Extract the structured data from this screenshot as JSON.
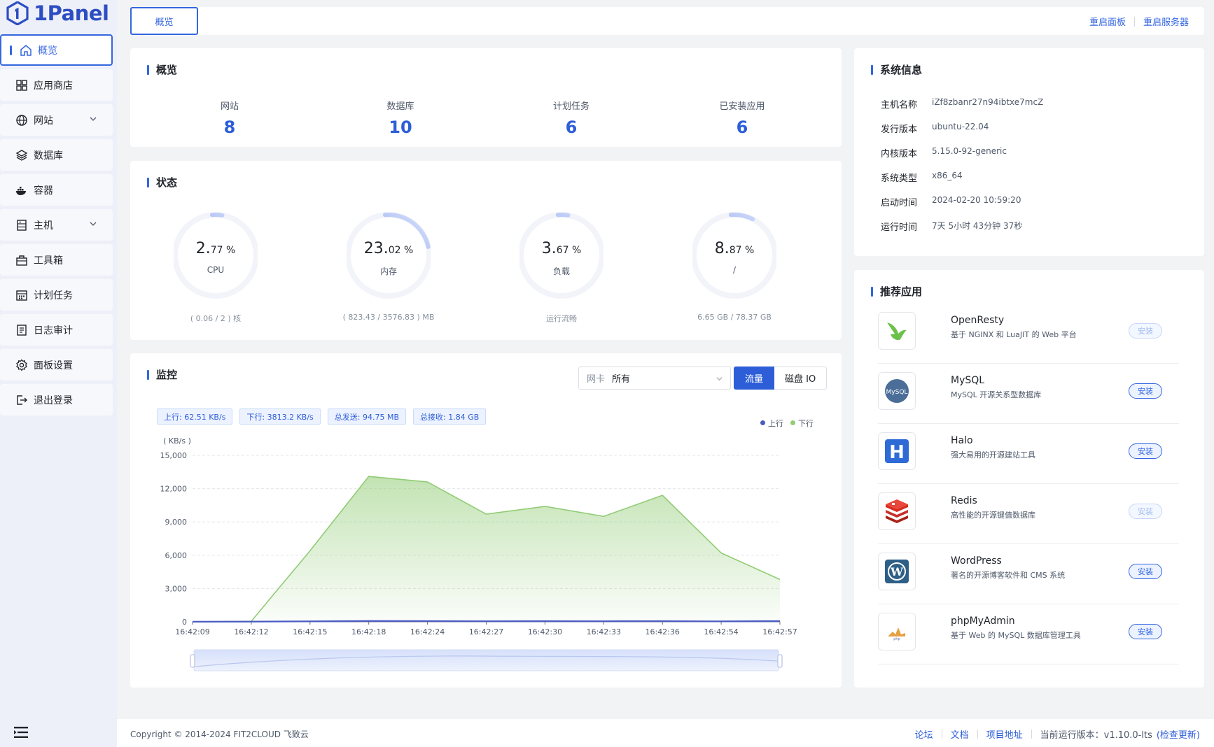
{
  "brand": {
    "name": "1Panel"
  },
  "sidebar": {
    "items": [
      {
        "label": "概览",
        "icon": "home-icon",
        "active": true
      },
      {
        "label": "应用商店",
        "icon": "grid-icon"
      },
      {
        "label": "网站",
        "icon": "globe-icon",
        "expandable": true
      },
      {
        "label": "数据库",
        "icon": "layers-icon"
      },
      {
        "label": "容器",
        "icon": "docker-icon"
      },
      {
        "label": "主机",
        "icon": "server-icon",
        "expandable": true
      },
      {
        "label": "工具箱",
        "icon": "toolbox-icon"
      },
      {
        "label": "计划任务",
        "icon": "calendar-icon"
      },
      {
        "label": "日志审计",
        "icon": "log-icon"
      },
      {
        "label": "面板设置",
        "icon": "gear-icon"
      },
      {
        "label": "退出登录",
        "icon": "logout-icon"
      }
    ]
  },
  "topbar": {
    "tab": "概览",
    "restart_panel": "重启面板",
    "restart_server": "重启服务器"
  },
  "overview": {
    "title": "概览",
    "stats": [
      {
        "label": "网站",
        "value": "8"
      },
      {
        "label": "数据库",
        "value": "10"
      },
      {
        "label": "计划任务",
        "value": "6"
      },
      {
        "label": "已安装应用",
        "value": "6"
      }
    ]
  },
  "status": {
    "title": "状态",
    "gauges": [
      {
        "int": "2.",
        "dec": "77 %",
        "percent": 2.77,
        "name": "CPU",
        "detail": "( 0.06 / 2 ) 核"
      },
      {
        "int": "23.",
        "dec": "02 %",
        "percent": 23.02,
        "name": "内存",
        "detail": "( 823.43 / 3576.83 ) MB"
      },
      {
        "int": "3.",
        "dec": "67 %",
        "percent": 3.67,
        "name": "负载",
        "detail": "运行流畅"
      },
      {
        "int": "8.",
        "dec": "87 %",
        "percent": 8.87,
        "name": "/",
        "detail": "6.65 GB / 78.37 GB"
      }
    ]
  },
  "monitor": {
    "title": "监控",
    "nic_prefix": "网卡",
    "nic_value": "所有",
    "tab_traffic": "流量",
    "tab_disk": "磁盘 IO",
    "tags": [
      "上行: 62.51 KB/s",
      "下行: 3813.2 KB/s",
      "总发送: 94.75 MB",
      "总接收: 1.84 GB"
    ]
  },
  "chart_data": {
    "type": "area",
    "ylabel": "( KB/s )",
    "ylim": [
      0,
      15000
    ],
    "yticks": [
      "0",
      "3,000",
      "6,000",
      "9,000",
      "12,000",
      "15,000"
    ],
    "x": [
      "16:42:09",
      "16:42:12",
      "16:42:15",
      "16:42:18",
      "16:42:24",
      "16:42:27",
      "16:42:30",
      "16:42:33",
      "16:42:36",
      "16:42:54",
      "16:42:57"
    ],
    "series": [
      {
        "name": "上行",
        "color": "#4a5bc4",
        "values": [
          10,
          15,
          40,
          70,
          65,
          50,
          55,
          50,
          60,
          40,
          62.51
        ]
      },
      {
        "name": "下行",
        "color": "#91cc75",
        "values": [
          0,
          50,
          6400,
          13100,
          12600,
          9700,
          10400,
          9500,
          11400,
          6200,
          3813.2
        ]
      }
    ],
    "legend": "top-right",
    "grid": true
  },
  "sysinfo": {
    "title": "系统信息",
    "rows": [
      {
        "k": "主机名称",
        "v": "iZf8zbanr27n94ibtxe7mcZ"
      },
      {
        "k": "发行版本",
        "v": "ubuntu-22.04"
      },
      {
        "k": "内核版本",
        "v": "5.15.0-92-generic"
      },
      {
        "k": "系统类型",
        "v": "x86_64"
      },
      {
        "k": "启动时间",
        "v": "2024-02-20 10:59:20"
      },
      {
        "k": "运行时间",
        "v": "7天 5小时 43分钟 37秒"
      }
    ]
  },
  "apps": {
    "title": "推荐应用",
    "install_label": "安装",
    "items": [
      {
        "name": "OpenResty",
        "desc": "基于 NGINX 和 LuaJIT 的 Web 平台",
        "icon": "openresty-icon",
        "installed": true
      },
      {
        "name": "MySQL",
        "desc": "MySQL 开源关系型数据库",
        "icon": "mysql-icon",
        "installed": false
      },
      {
        "name": "Halo",
        "desc": "强大易用的开源建站工具",
        "icon": "halo-icon",
        "installed": false
      },
      {
        "name": "Redis",
        "desc": "高性能的开源键值数据库",
        "icon": "redis-icon",
        "installed": true
      },
      {
        "name": "WordPress",
        "desc": "著名的开源博客软件和 CMS 系统",
        "icon": "wordpress-icon",
        "installed": false
      },
      {
        "name": "phpMyAdmin",
        "desc": "基于 Web 的 MySQL 数据库管理工具",
        "icon": "phpmyadmin-icon",
        "installed": false
      }
    ]
  },
  "footer": {
    "copyright": "Copyright © 2014-2024 FIT2CLOUD 飞致云",
    "forum": "论坛",
    "docs": "文档",
    "project": "项目地址",
    "version_label": "当前运行版本：v1.10.0-lts",
    "check_update": "(检查更新)"
  },
  "colors": {
    "accent": "#3366e0",
    "value_blue": "#2d5ed8",
    "download": "#91cc75",
    "upload": "#4a5bc4"
  }
}
